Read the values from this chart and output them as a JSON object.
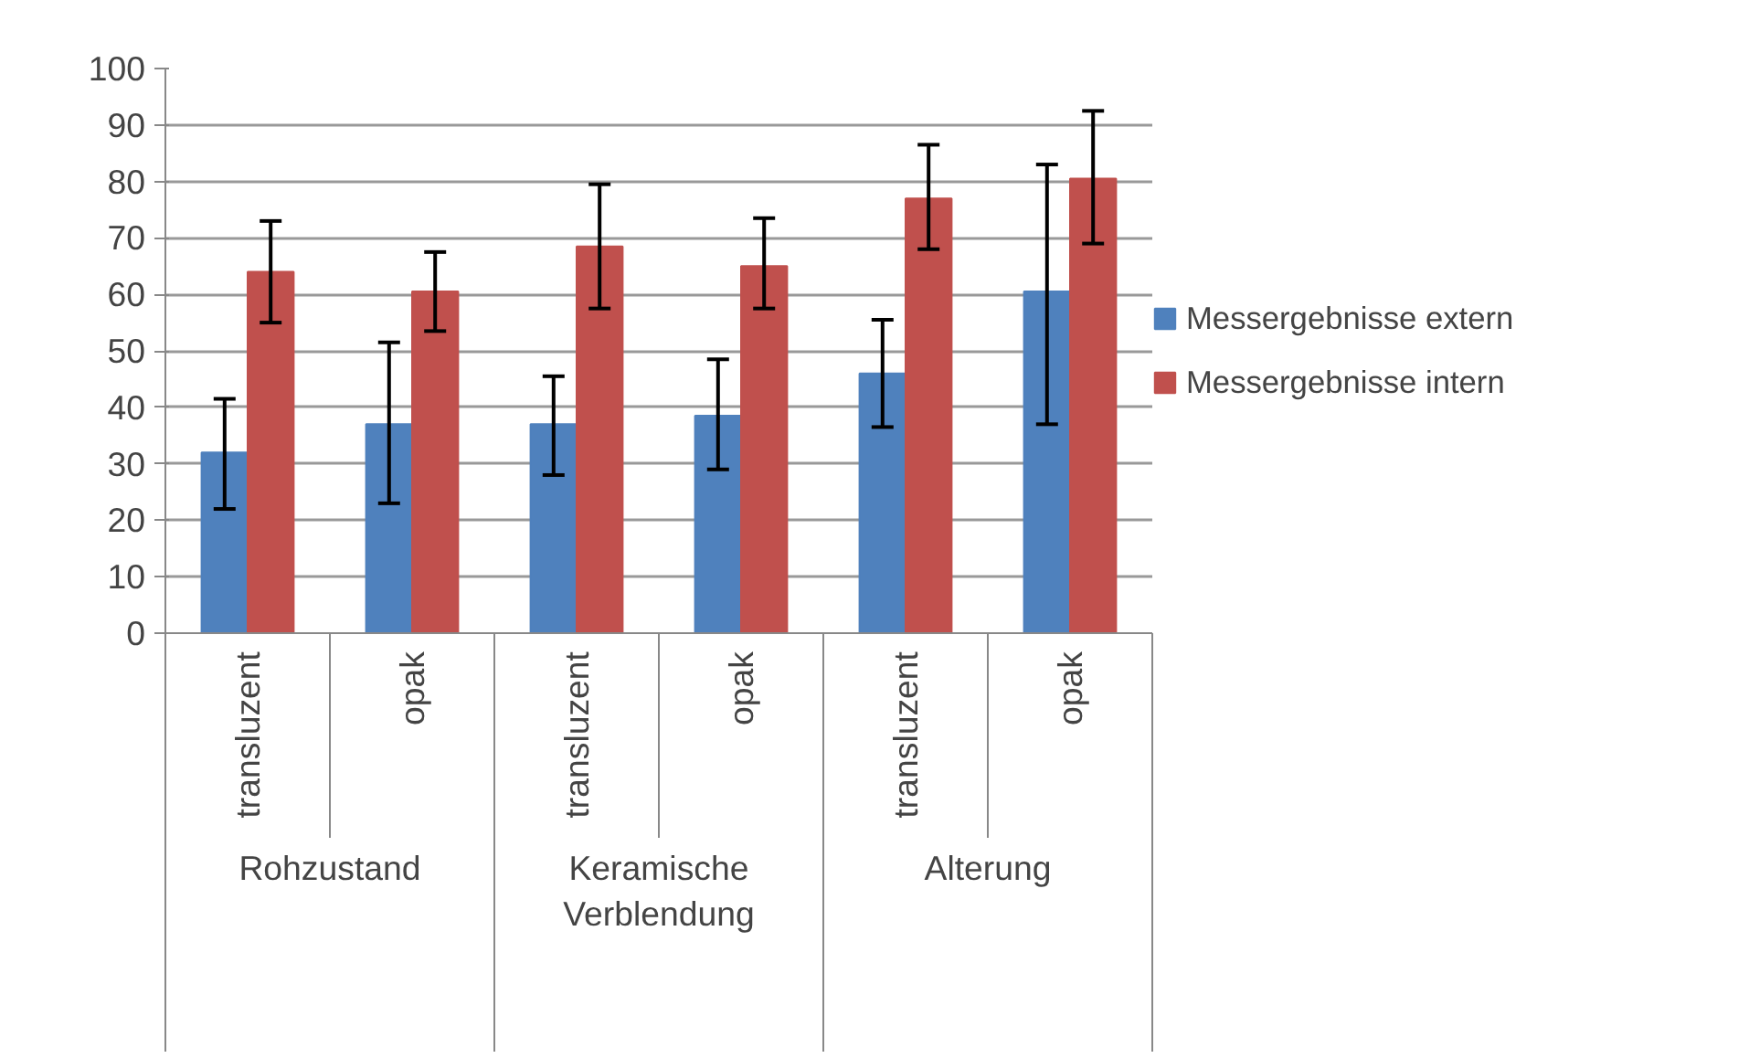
{
  "chart_data": {
    "type": "bar",
    "categories": [
      "transluzent",
      "opak",
      "transluzent",
      "opak",
      "transluzent",
      "opak"
    ],
    "series": [
      {
        "name": "Messergebnisse extern",
        "color": "#4f81bd",
        "values": [
          32,
          37,
          37,
          38.5,
          46,
          60.5
        ],
        "errors": [
          [
            22,
            41.5
          ],
          [
            23,
            51.5
          ],
          [
            28,
            45.5
          ],
          [
            29,
            48.5
          ],
          [
            36.5,
            55.5
          ],
          [
            37,
            83
          ]
        ]
      },
      {
        "name": "Messergebnisse intern",
        "color": "#c0504d",
        "values": [
          64,
          60.5,
          68.5,
          65,
          77,
          80.5
        ],
        "errors": [
          [
            55,
            73
          ],
          [
            53.5,
            67.5
          ],
          [
            57.5,
            79.5
          ],
          [
            57.5,
            73.5
          ],
          [
            68,
            86.5
          ],
          [
            69,
            92.5
          ]
        ]
      }
    ],
    "annotations": [
      "Rohzustand",
      "Keramische Verblendung",
      "Alterung"
    ],
    "ylim": [
      0,
      100
    ],
    "yticks": [
      0,
      10,
      20,
      30,
      40,
      50,
      60,
      70,
      80,
      90,
      100
    ],
    "grid": "y",
    "legend": "right"
  }
}
